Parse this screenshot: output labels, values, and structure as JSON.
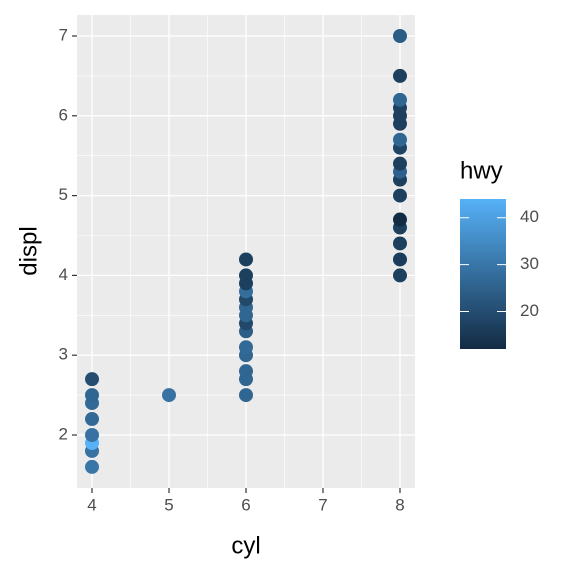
{
  "chart_data": {
    "type": "scatter",
    "x_label": "cyl",
    "y_label": "displ",
    "legend_title": "hwy",
    "xlim": [
      3.805,
      8.195
    ],
    "ylim": [
      1.336,
      7.263
    ],
    "xticks": [
      4,
      5,
      6,
      7,
      8
    ],
    "yticks": [
      2,
      3,
      4,
      5,
      6,
      7
    ],
    "color_ticks": [
      20,
      30,
      40
    ],
    "color_low": "#132B43",
    "color_high": "#56B1F7",
    "grid": true,
    "x": [
      4,
      4,
      4,
      4,
      4,
      4,
      4,
      4,
      5,
      6,
      6,
      6,
      6,
      6,
      6,
      6,
      6,
      6,
      6,
      6,
      6,
      6,
      6,
      8,
      8,
      8,
      8,
      8,
      8,
      8,
      8,
      8,
      8,
      8,
      8,
      8,
      8,
      8,
      8,
      8
    ],
    "y": [
      1.6,
      1.8,
      1.9,
      2.0,
      2.2,
      2.4,
      2.5,
      2.7,
      2.5,
      2.5,
      2.7,
      2.8,
      3.0,
      3.1,
      3.3,
      3.4,
      3.5,
      3.6,
      3.7,
      3.8,
      3.9,
      4.0,
      4.2,
      4.0,
      4.2,
      4.4,
      4.6,
      4.7,
      5.0,
      5.2,
      5.3,
      5.4,
      5.6,
      5.7,
      5.9,
      6.0,
      6.1,
      6.2,
      6.5,
      7.0
    ],
    "hwy": [
      30,
      29,
      44,
      29,
      27,
      27,
      26,
      20,
      29,
      26,
      26,
      26,
      26,
      27,
      24,
      19,
      26,
      26,
      19,
      28,
      17,
      17,
      17,
      17,
      16,
      17,
      17,
      12,
      17,
      17,
      25,
      17,
      18,
      26,
      17,
      17,
      17,
      26,
      17,
      24
    ]
  }
}
